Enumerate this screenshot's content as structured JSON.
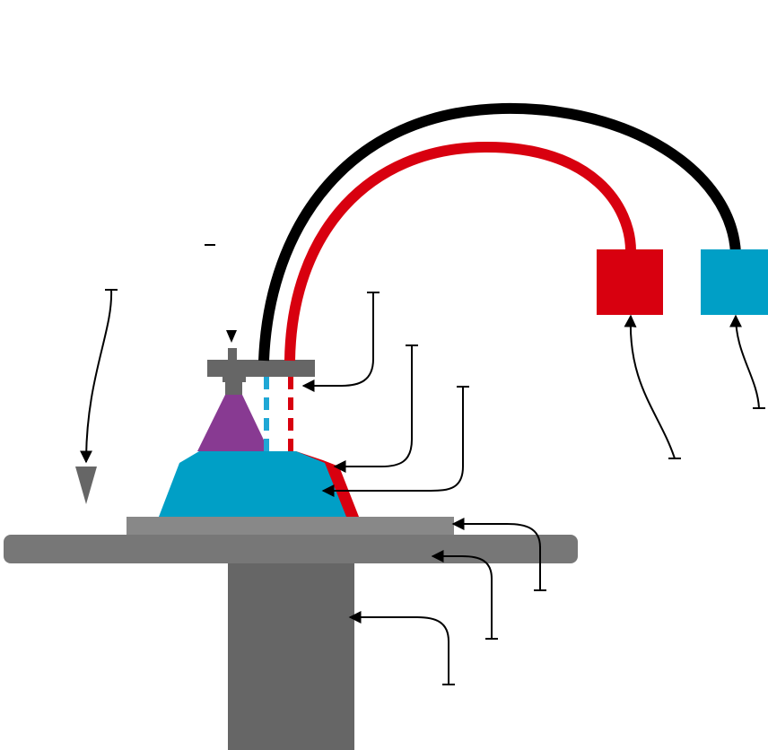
{
  "diagram": {
    "labels": [],
    "colors": {
      "background": "#ffffff",
      "stand": "#666666",
      "table": "#777777",
      "plate": "#888888",
      "dome": "#009fc6",
      "dome_coating": "#d8000f",
      "cone": "#883a92",
      "head": "#666666",
      "drop_marker": "#666666",
      "red_tube": "#d8000f",
      "black_tube": "#000000",
      "red_reservoir": "#d8000f",
      "blue_reservoir": "#009fc6",
      "blue_channel": "#1fa7d5",
      "red_channel": "#d8000f",
      "leader": "#000000"
    },
    "icons": [
      "arrow-head-icon",
      "tick-bar-icon",
      "drop-marker-icon"
    ]
  }
}
